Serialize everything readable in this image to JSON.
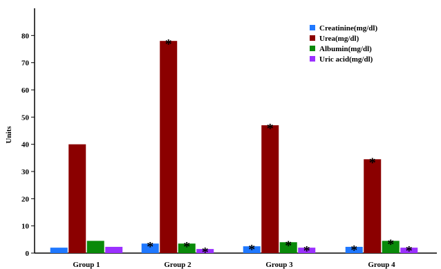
{
  "chart_data": {
    "type": "bar",
    "title": "",
    "xlabel": "",
    "ylabel": "Units",
    "ylim": [
      0,
      90
    ],
    "yticks": [
      0,
      10,
      20,
      30,
      40,
      50,
      60,
      70,
      80
    ],
    "grid": false,
    "legend_position": "top-right",
    "categories": [
      "Group 1",
      "Group 2",
      "Group 3",
      "Group 4"
    ],
    "significance_marker": "*",
    "series": [
      {
        "name": "Creatinine(mg/dl)",
        "color": "#1f78ff",
        "values": [
          2.0,
          3.5,
          2.5,
          2.3
        ],
        "significant": [
          false,
          true,
          true,
          true
        ]
      },
      {
        "name": "Urea(mg/dl)",
        "color": "#8b0000",
        "values": [
          40,
          78,
          47,
          34.5
        ],
        "significant": [
          false,
          true,
          true,
          true
        ]
      },
      {
        "name": "Albumin(mg/dl)",
        "color": "#0a8a0a",
        "values": [
          4.5,
          3.5,
          4.0,
          4.5
        ],
        "significant": [
          false,
          true,
          true,
          true
        ]
      },
      {
        "name": "Uric acid(mg/dl)",
        "color": "#9b30ff",
        "values": [
          2.3,
          1.5,
          2.0,
          2.0
        ],
        "significant": [
          false,
          true,
          true,
          true
        ]
      }
    ]
  }
}
